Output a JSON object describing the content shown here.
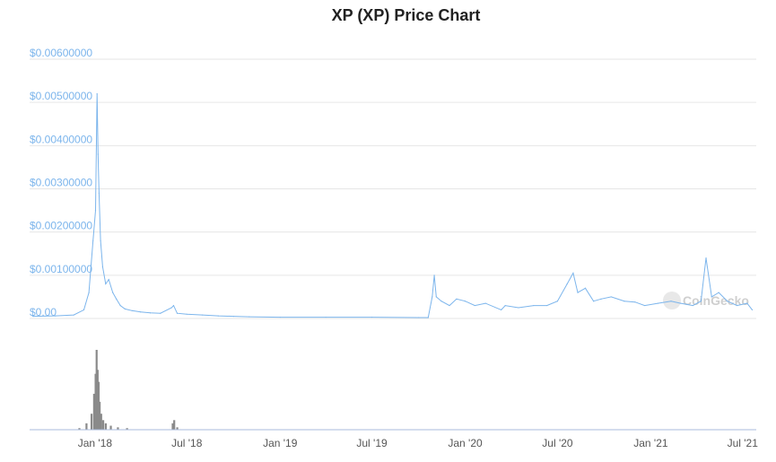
{
  "title": "XP (XP) Price Chart",
  "watermark": "CoinGecko",
  "colors": {
    "price_line": "#7cb5ec",
    "volume_bars": "#8a8a8a",
    "grid": "#e6e6e6",
    "axis_labels_y": "#7cb5ec"
  },
  "chart_data": [
    {
      "type": "line",
      "title": "XP (XP) Price Chart",
      "xlabel": "",
      "ylabel": "",
      "x_tick_labels": [
        "Jan '18",
        "Jul '18",
        "Jan '19",
        "Jul '19",
        "Jan '20",
        "Jul '20",
        "Jan '21",
        "Jul '21"
      ],
      "y_tick_labels": [
        "$0.00",
        "$0.00100000",
        "$0.00200000",
        "$0.00300000",
        "$0.00400000",
        "$0.00500000",
        "$0.00600000"
      ],
      "ylim": [
        0,
        0.006
      ],
      "grid": true,
      "series": [
        {
          "x": [
            "2017-09-01",
            "2017-10-15",
            "2017-11-20",
            "2017-12-10",
            "2017-12-20",
            "2017-12-28",
            "2018-01-02",
            "2018-01-05",
            "2018-01-07",
            "2018-01-09",
            "2018-01-12",
            "2018-01-16",
            "2018-01-22",
            "2018-01-28",
            "2018-02-05",
            "2018-02-12",
            "2018-02-20",
            "2018-03-01",
            "2018-03-15",
            "2018-04-01",
            "2018-04-20",
            "2018-05-10",
            "2018-06-01",
            "2018-06-05",
            "2018-06-12",
            "2018-07-01",
            "2018-08-01",
            "2018-09-01",
            "2018-10-01",
            "2018-11-01",
            "2019-01-01",
            "2019-04-01",
            "2019-07-01",
            "2019-10-01",
            "2019-10-20",
            "2019-10-28",
            "2019-11-01",
            "2019-11-05",
            "2019-11-15",
            "2019-12-01",
            "2019-12-15",
            "2020-01-01",
            "2020-01-20",
            "2020-02-10",
            "2020-03-12",
            "2020-03-20",
            "2020-04-15",
            "2020-05-15",
            "2020-06-10",
            "2020-07-01",
            "2020-07-20",
            "2020-08-01",
            "2020-08-10",
            "2020-08-25",
            "2020-09-10",
            "2020-09-25",
            "2020-10-15",
            "2020-11-10",
            "2020-12-01",
            "2020-12-20",
            "2021-01-15",
            "2021-02-10",
            "2021-03-01",
            "2021-03-25",
            "2021-04-10",
            "2021-04-20",
            "2021-05-01",
            "2021-05-15",
            "2021-06-01",
            "2021-06-20",
            "2021-07-10",
            "2021-07-20"
          ],
          "values": [
            5e-05,
            6e-05,
            8e-05,
            0.0002,
            0.0006,
            0.0018,
            0.0025,
            0.0052,
            0.0038,
            0.0029,
            0.0018,
            0.0012,
            0.0008,
            0.0009,
            0.0006,
            0.00045,
            0.0003,
            0.00022,
            0.00018,
            0.00015,
            0.00013,
            0.00012,
            0.00025,
            0.0003,
            0.00012,
            0.0001,
            8e-05,
            6e-05,
            5e-05,
            4e-05,
            3e-05,
            3e-05,
            3e-05,
            2e-05,
            2e-05,
            0.0005,
            0.001,
            0.0005,
            0.0004,
            0.0003,
            0.00045,
            0.0004,
            0.0003,
            0.00035,
            0.0002,
            0.0003,
            0.00025,
            0.0003,
            0.0003,
            0.0004,
            0.0008,
            0.00105,
            0.0006,
            0.0007,
            0.0004,
            0.00045,
            0.0005,
            0.0004,
            0.00038,
            0.0003,
            0.00035,
            0.0004,
            0.00035,
            0.0003,
            0.0004,
            0.0014,
            0.0005,
            0.0006,
            0.0004,
            0.0003,
            0.00035,
            0.0002
          ]
        }
      ]
    },
    {
      "type": "bar",
      "title": "",
      "xlabel": "",
      "ylabel": "",
      "series": [
        {
          "x": [
            "2017-12-01",
            "2017-12-15",
            "2017-12-25",
            "2017-12-30",
            "2018-01-02",
            "2018-01-04",
            "2018-01-06",
            "2018-01-08",
            "2018-01-10",
            "2018-01-13",
            "2018-01-17",
            "2018-01-22",
            "2018-02-01",
            "2018-02-15",
            "2018-03-05",
            "2018-06-03",
            "2018-06-06",
            "2018-06-12"
          ],
          "values": [
            0.02,
            0.08,
            0.2,
            0.45,
            0.7,
            1.0,
            0.75,
            0.6,
            0.35,
            0.2,
            0.12,
            0.08,
            0.05,
            0.03,
            0.02,
            0.08,
            0.12,
            0.03
          ]
        }
      ]
    }
  ]
}
